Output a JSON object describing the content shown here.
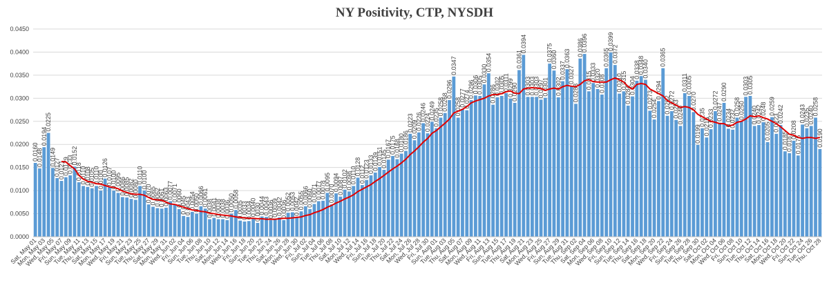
{
  "chart_data": {
    "type": "bar",
    "title": "NY Positivity, CTP, NYSDH",
    "categories": [
      "Sat, May 01",
      null,
      "Mon, May 03",
      null,
      "Wed, May 05",
      null,
      "Fri, May 07",
      null,
      "Sun, May 09",
      null,
      "Tue, May 11",
      null,
      "Thu, May 13",
      null,
      "Sat, May 15",
      null,
      "Mon, May 17",
      null,
      "Wed, May 19",
      null,
      "Fri, May 21",
      null,
      "Sun, May 23",
      null,
      "Tue, May 25",
      null,
      "Thu, May 27",
      null,
      "Sat, May 29",
      null,
      "Mon, May 31",
      null,
      "Wed, Jun 02",
      null,
      "Fri, Jun 04",
      null,
      "Sun, Jun 06",
      null,
      "Tue, Jun 08",
      null,
      "Thu, Jun 10",
      null,
      "Sat, Jun 12",
      null,
      "Mon, Jun 14",
      null,
      "Wed, Jun 16",
      null,
      "Fri, Jun 18",
      null,
      "Sun, Jun 20",
      null,
      "Tue, Jun 22",
      null,
      "Thu, Jun 24",
      null,
      "Sat, Jun 26",
      null,
      "Mon, Jun 28",
      null,
      "Wed, Jun 30",
      null,
      "Fri, Jul 02",
      null,
      "Sun, Jul 04",
      null,
      "Tue, Jul 06",
      null,
      "Thu, Jul 08",
      null,
      "Sat, Jul 10",
      null,
      "Mon, Jul 12",
      null,
      "Wed, Jul 14",
      null,
      "Fri, Jul 16",
      null,
      "Sun, Jul 18",
      null,
      "Tue, Jul 20",
      null,
      "Thu, Jul 22",
      null,
      "Sat, Jul 24",
      null,
      "Mon, Jul 26",
      null,
      "Wed, Jul 28",
      null,
      "Fri, Jul 30",
      null,
      "Sun, Aug 01",
      null,
      "Tue, Aug 03",
      null,
      "Thu, Aug 05",
      null,
      "Sat, Aug 07",
      null,
      "Mon, Aug 09",
      null,
      "Wed, Aug 11",
      null,
      "Fri, Aug 13",
      null,
      "Sun, Aug 15",
      null,
      "Tue, Aug 17",
      null,
      "Thu, Aug 19",
      null,
      "Sat, Aug 21",
      null,
      "Mon, Aug 23",
      null,
      "Wed, Aug 25",
      null,
      "Fri, Aug 27",
      null,
      "Sun, Aug 29",
      null,
      "Tue, Aug 31",
      null,
      "Thu, Sep 02",
      null,
      "Sat, Sep 04",
      null,
      "Mon, Sep 06",
      null,
      "Wed, Sep 08",
      null,
      "Fri, Sep 10",
      null,
      "Sun, Sep 12",
      null,
      "Tue, Sep 14",
      null,
      "Thu, Sep 16",
      null,
      "Sat, Sep 18",
      null,
      "Mon, Sep 20",
      null,
      "Wed, Sep 22",
      null,
      "Fri, Sep 24",
      null,
      "Sun, Sep 26",
      null,
      "Tue, Sep 28",
      null,
      "Thu, Sep 30",
      null,
      "Sat, Oct 02",
      null,
      "Mon, Oct 04",
      null,
      "Wed, Oct 06",
      null,
      "Fri, Oct 08",
      null,
      "Sun, Oct 10",
      null,
      "Tue, Oct 12",
      null,
      "Thu, Oct 14",
      null,
      "Sat, Oct 16",
      null,
      "Mon, Oct 18",
      null,
      "Wed, Oct 20",
      null,
      "Fri, Oct 22",
      null,
      "Sun, Oct 24",
      null,
      "Tue, Oct 26",
      null,
      "Thu, Oct 28"
    ],
    "series": [
      {
        "type": "bar",
        "color": "#5b9bd5",
        "values": [
          0.016,
          0.0148,
          0.0194,
          0.0225,
          0.0149,
          0.0127,
          0.0121,
          0.0129,
          0.0133,
          0.0152,
          0.0118,
          0.011,
          0.0108,
          0.0105,
          0.011,
          0.01,
          0.0126,
          0.0107,
          0.01,
          0.0095,
          0.0086,
          0.0085,
          0.0082,
          0.008,
          0.011,
          0.01,
          0.007,
          0.0065,
          0.0062,
          0.0061,
          0.0063,
          0.0077,
          0.0071,
          0.006,
          0.0045,
          0.0043,
          0.0054,
          0.005,
          0.0066,
          0.0061,
          0.0038,
          0.0041,
          0.0038,
          0.0038,
          0.0036,
          0.005,
          0.0058,
          0.0035,
          0.0033,
          0.0034,
          0.004,
          0.003,
          0.0044,
          0.0043,
          0.0036,
          0.0039,
          0.0042,
          0.0036,
          0.0052,
          0.0053,
          0.0042,
          0.0055,
          0.0066,
          0.006,
          0.0071,
          0.0077,
          0.0078,
          0.0095,
          0.007,
          0.0094,
          0.0087,
          0.0102,
          0.0098,
          0.011,
          0.0128,
          0.0112,
          0.0123,
          0.0133,
          0.0139,
          0.0151,
          0.0145,
          0.0167,
          0.0175,
          0.0168,
          0.018,
          0.0186,
          0.0223,
          0.0209,
          0.0226,
          0.0246,
          0.0224,
          0.0249,
          0.0235,
          0.0258,
          0.0268,
          0.0296,
          0.0347,
          0.0258,
          0.0277,
          0.0274,
          0.0296,
          0.0306,
          0.0305,
          0.033,
          0.0354,
          0.0286,
          0.0302,
          0.0305,
          0.0311,
          0.0299,
          0.029,
          0.0361,
          0.0394,
          0.0303,
          0.0303,
          0.0303,
          0.0297,
          0.0301,
          0.0375,
          0.036,
          0.0302,
          0.0337,
          0.0363,
          0.0327,
          0.0288,
          0.0386,
          0.0396,
          0.0315,
          0.0333,
          0.032,
          0.0308,
          0.0365,
          0.0399,
          0.0372,
          0.031,
          0.0315,
          0.0284,
          0.0304,
          0.0338,
          0.0348,
          0.034,
          0.0273,
          0.0254,
          0.0294,
          0.0365,
          0.0262,
          0.0272,
          0.0253,
          0.024,
          0.0311,
          0.0305,
          0.027,
          0.0199,
          0.0235,
          0.0215,
          0.0233,
          0.0272,
          0.0247,
          0.029,
          0.0234,
          0.0232,
          0.0258,
          0.025,
          0.0303,
          0.0305,
          0.024,
          0.0242,
          0.0248,
          0.0205,
          0.0259,
          0.0223,
          0.0242,
          0.0185,
          0.0181,
          0.0208,
          0.0176,
          0.0243,
          0.0235,
          0.024,
          0.0258,
          0.019
        ],
        "value_labels": [
          "0.0160",
          "0.0148",
          "0.0194",
          "0.0225",
          "0.0149",
          "0.0127",
          "0.0121",
          "0.0129",
          "0.0133",
          "0.0152",
          "0.0118",
          "0.0110",
          "0.0108",
          "0.0105",
          "0.0110",
          "0.0100",
          "0.0126",
          "0.0107",
          "0.0100",
          "0.0095",
          "0.0086",
          "0.0085",
          "0.0082",
          "0.0080",
          "0.0110",
          "0.0100",
          "0.0070",
          "0.0065",
          "0.0062",
          "0.0061",
          "0.0063",
          "0.0077",
          "0.0071",
          "0.0060",
          "0.0045",
          "0.0043",
          "0.0054",
          "0.0050",
          "0.0066",
          "0.0061",
          "0.0038",
          "0.0041",
          "0.0038",
          "0.0038",
          "0.0036",
          "0.0050",
          "0.0058",
          "0.0035",
          "0.0033",
          "0.0034",
          "0.0040",
          "0.0030",
          "0.0044",
          "0.0043",
          "0.0036",
          "0.0039",
          "0.0042",
          "0.0036",
          "0.0052",
          "0.0053",
          "0.0042",
          "0.0055",
          "0.0066",
          "0.0060",
          "0.0071",
          "0.0077",
          "0.0078",
          "0.0095",
          "0.0070",
          "0.0094",
          "0.0087",
          "0.0102",
          "0.0098",
          "0.0110",
          "0.0128",
          "0.0112",
          "0.0123",
          "0.0133",
          "0.0139",
          "0.0151",
          "0.0145",
          "0.0167",
          "0.0175",
          "0.0168",
          "0.0180",
          "0.0186",
          "0.0223",
          "0.0209",
          "0.0226",
          "0.0246",
          "0.0224",
          "0.0249",
          "0.0235",
          "0.0258",
          "0.0268",
          "0.0296",
          "0.0347",
          "0.0258",
          "0.0277",
          "0.0274",
          "0.0296",
          "0.0306",
          "0.0305",
          "0.0330",
          "0.0354",
          "0.0286",
          "0.0302",
          "0.0305",
          "0.0311",
          "0.0299",
          "0.0290",
          "0.0361",
          "0.0394",
          "0.0303",
          "0.0303",
          "0.0303",
          "0.0297",
          "0.0301",
          "0.0375",
          "0.0360",
          "0.0302",
          "0.0337",
          "0.0363",
          "0.0327",
          "0.0288",
          "0.0386",
          "0.0396",
          "0.0315",
          "0.0333",
          "0.0320",
          "0.0308",
          "0.0365",
          "0.0399",
          "0.0372",
          "0.0310",
          "0.0315",
          "0.0284",
          "0.0304",
          "0.0338",
          "0.0348",
          "0.0340",
          "0.0273",
          "0.0254",
          "0.0294",
          "0.0365",
          "0.0262",
          "0.0272",
          "0.0253",
          "0.0240",
          "0.0311",
          "0.0305",
          "0.0270",
          "0.0199",
          "0.0235",
          "0.0215",
          "0.0233",
          "0.0272",
          "0.0247",
          "0.0290",
          "0.0234",
          "0.0232",
          "0.0258",
          "0.0250",
          "0.0303",
          "0.0305",
          "0.0240",
          "0.0242",
          "0.0248",
          "0.0205",
          "0.0259",
          "0.0223",
          "0.0242",
          "0.0185",
          "0.0181",
          "0.0208",
          "0.0176",
          "0.0243",
          "0.0235",
          "0.0240",
          "0.0258",
          "0.0190"
        ]
      },
      {
        "type": "line",
        "color": "#e00000",
        "values": [
          null,
          null,
          null,
          null,
          null,
          null,
          0.0163,
          0.0162,
          0.0154,
          0.0147,
          0.0133,
          0.0125,
          0.012,
          0.0118,
          0.0115,
          0.0114,
          0.0111,
          0.0108,
          0.0107,
          0.0104,
          0.0099,
          0.0096,
          0.0093,
          0.0092,
          0.0092,
          0.009,
          0.0085,
          0.0081,
          0.008,
          0.0079,
          0.0075,
          0.0071,
          0.007,
          0.0067,
          0.0064,
          0.0061,
          0.0058,
          0.0057,
          0.0055,
          0.0054,
          0.0051,
          0.005,
          0.0048,
          0.0047,
          0.0046,
          0.0045,
          0.0043,
          0.0042,
          0.0041,
          0.004,
          0.004,
          0.0039,
          0.0039,
          0.0038,
          0.0038,
          0.0038,
          0.0039,
          0.004,
          0.004,
          0.0041,
          0.0042,
          0.0043,
          0.0046,
          0.0048,
          0.0052,
          0.0055,
          0.0059,
          0.0064,
          0.0068,
          0.0073,
          0.0077,
          0.0082,
          0.0086,
          0.0091,
          0.0098,
          0.0103,
          0.0108,
          0.0113,
          0.012,
          0.0126,
          0.0133,
          0.014,
          0.0147,
          0.0153,
          0.016,
          0.0168,
          0.0178,
          0.0186,
          0.0195,
          0.0205,
          0.0213,
          0.0224,
          0.023,
          0.0238,
          0.0246,
          0.0255,
          0.0268,
          0.0272,
          0.0276,
          0.0282,
          0.029,
          0.0294,
          0.0297,
          0.03,
          0.0305,
          0.0308,
          0.0308,
          0.031,
          0.0314,
          0.0316,
          0.0311,
          0.031,
          0.032,
          0.0322,
          0.0323,
          0.0322,
          0.0321,
          0.0317,
          0.032,
          0.0322,
          0.032,
          0.0325,
          0.0328,
          0.0326,
          0.0325,
          0.033,
          0.0338,
          0.034,
          0.0336,
          0.0335,
          0.0335,
          0.0335,
          0.034,
          0.0344,
          0.034,
          0.0335,
          0.0325,
          0.032,
          0.033,
          0.0332,
          0.033,
          0.032,
          0.0315,
          0.031,
          0.0305,
          0.0295,
          0.029,
          0.0285,
          0.028,
          0.0282,
          0.028,
          0.0275,
          0.0265,
          0.026,
          0.0255,
          0.025,
          0.0248,
          0.0245,
          0.0245,
          0.024,
          0.0242,
          0.0248,
          0.025,
          0.0255,
          0.0262,
          0.026,
          0.0262,
          0.0258,
          0.0255,
          0.025,
          0.0245,
          0.0238,
          0.023,
          0.0222,
          0.022,
          0.0215,
          0.0213,
          0.0215,
          0.0215,
          0.0213,
          0.0215
        ]
      }
    ],
    "ylim": [
      0,
      0.045
    ],
    "yticks": [
      {
        "value": 0,
        "label": "0.0000"
      },
      {
        "value": 0.005,
        "label": "0.0050"
      },
      {
        "value": 0.01,
        "label": "0.0100"
      },
      {
        "value": 0.015,
        "label": "0.0150"
      },
      {
        "value": 0.02,
        "label": "0.0200"
      },
      {
        "value": 0.025,
        "label": "0.0250"
      },
      {
        "value": 0.03,
        "label": "0.0300"
      },
      {
        "value": 0.035,
        "label": "0.0350"
      },
      {
        "value": 0.04,
        "label": "0.0400"
      },
      {
        "value": 0.045,
        "label": "0.0450"
      }
    ],
    "grid": true
  }
}
